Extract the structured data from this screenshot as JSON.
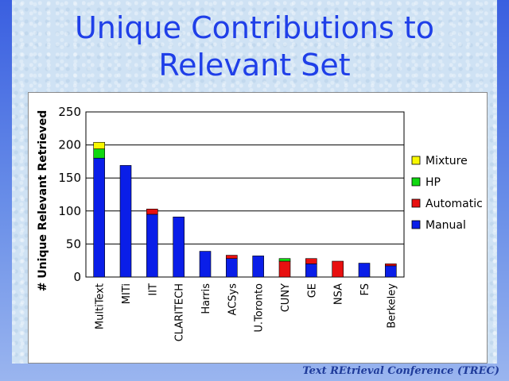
{
  "slide": {
    "title_line1": "Unique Contributions to",
    "title_line2": "Relevant Set",
    "footer": "Text REtrieval Conference (TREC)"
  },
  "colors": {
    "Manual": "#0a1ee8",
    "Automatic": "#e81010",
    "HP": "#10d810",
    "Mixture": "#f8f800"
  },
  "chart_data": {
    "type": "bar",
    "stacked": true,
    "title": "",
    "xlabel": "",
    "ylabel": "# Unique Relevant Retrieved",
    "ylim": [
      0,
      250
    ],
    "yticks": [
      0,
      50,
      100,
      150,
      200,
      250
    ],
    "grid": true,
    "legend_position": "right",
    "legend_order": [
      "Mixture",
      "HP",
      "Automatic",
      "Manual"
    ],
    "categories": [
      "MultiText",
      "MITi",
      "IIT",
      "CLARITECH",
      "Harris",
      "ACSys",
      "U.Toronto",
      "CUNY",
      "GE",
      "NSA",
      "FS",
      "Berkeley"
    ],
    "series": [
      {
        "name": "Manual",
        "values": [
          180,
          169,
          95,
          91,
          39,
          28,
          32,
          0,
          20,
          0,
          21,
          17
        ]
      },
      {
        "name": "Automatic",
        "values": [
          0,
          0,
          8,
          0,
          0,
          5,
          0,
          24,
          8,
          24,
          0,
          3
        ]
      },
      {
        "name": "HP",
        "values": [
          14,
          0,
          0,
          0,
          0,
          0,
          0,
          4,
          0,
          0,
          0,
          0
        ]
      },
      {
        "name": "Mixture",
        "values": [
          10,
          0,
          0,
          0,
          0,
          0,
          0,
          0,
          0,
          0,
          0,
          0
        ]
      }
    ]
  }
}
